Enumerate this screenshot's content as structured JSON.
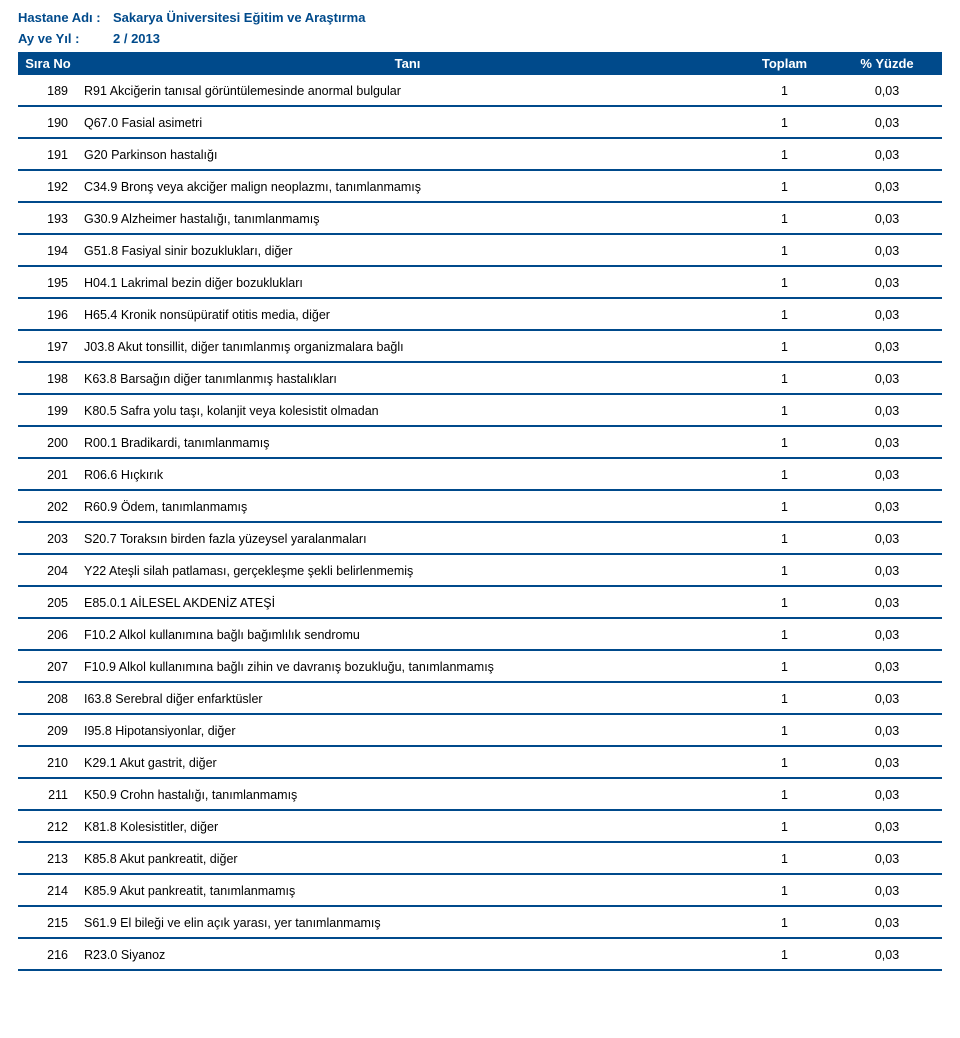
{
  "meta": {
    "hospital_label": "Hastane Adı :",
    "hospital_value": "Sakarya Üniversitesi Eğitim ve Araştırma",
    "period_label": "Ay ve Yıl :",
    "period_value": "2 / 2013"
  },
  "columns": {
    "no": "Sıra No",
    "desc": "Tanı",
    "total": "Toplam",
    "pct": "% Yüzde"
  },
  "styling": {
    "header_bg": "#004a8b",
    "header_fg": "#ffffff",
    "border_color": "#004a8b",
    "meta_color": "#004a8b",
    "body_bg": "#ffffff",
    "font_family": "Arial",
    "body_fontsize": 13,
    "col_widths": {
      "no": 60,
      "total": 95,
      "pct": 110
    }
  },
  "rows": [
    {
      "no": "189",
      "desc": "R91 Akciğerin tanısal görüntülemesinde anormal bulgular",
      "total": "1",
      "pct": "0,03"
    },
    {
      "no": "190",
      "desc": "Q67.0 Fasial asimetri",
      "total": "1",
      "pct": "0,03"
    },
    {
      "no": "191",
      "desc": "G20 Parkinson hastalığı",
      "total": "1",
      "pct": "0,03"
    },
    {
      "no": "192",
      "desc": "C34.9 Bronş veya akciğer malign neoplazmı, tanımlanmamış",
      "total": "1",
      "pct": "0,03"
    },
    {
      "no": "193",
      "desc": "G30.9 Alzheimer hastalığı, tanımlanmamış",
      "total": "1",
      "pct": "0,03"
    },
    {
      "no": "194",
      "desc": "G51.8 Fasiyal sinir bozuklukları, diğer",
      "total": "1",
      "pct": "0,03"
    },
    {
      "no": "195",
      "desc": "H04.1 Lakrimal bezin diğer bozuklukları",
      "total": "1",
      "pct": "0,03"
    },
    {
      "no": "196",
      "desc": "H65.4 Kronik nonsüpüratif otitis media, diğer",
      "total": "1",
      "pct": "0,03"
    },
    {
      "no": "197",
      "desc": "J03.8 Akut tonsillit, diğer tanımlanmış organizmalara bağlı",
      "total": "1",
      "pct": "0,03"
    },
    {
      "no": "198",
      "desc": "K63.8 Barsağın diğer tanımlanmış hastalıkları",
      "total": "1",
      "pct": "0,03"
    },
    {
      "no": "199",
      "desc": "K80.5 Safra yolu taşı, kolanjit veya kolesistit olmadan",
      "total": "1",
      "pct": "0,03"
    },
    {
      "no": "200",
      "desc": "R00.1 Bradikardi, tanımlanmamış",
      "total": "1",
      "pct": "0,03"
    },
    {
      "no": "201",
      "desc": "R06.6 Hıçkırık",
      "total": "1",
      "pct": "0,03"
    },
    {
      "no": "202",
      "desc": "R60.9 Ödem, tanımlanmamış",
      "total": "1",
      "pct": "0,03"
    },
    {
      "no": "203",
      "desc": "S20.7 Toraksın birden fazla yüzeysel yaralanmaları",
      "total": "1",
      "pct": "0,03"
    },
    {
      "no": "204",
      "desc": "Y22 Ateşli silah patlaması, gerçekleşme şekli belirlenmemiş",
      "total": "1",
      "pct": "0,03"
    },
    {
      "no": "205",
      "desc": "E85.0.1 AİLESEL AKDENİZ ATEŞİ",
      "total": "1",
      "pct": "0,03"
    },
    {
      "no": "206",
      "desc": "F10.2 Alkol kullanımına bağlı bağımlılık sendromu",
      "total": "1",
      "pct": "0,03"
    },
    {
      "no": "207",
      "desc": "F10.9 Alkol kullanımına bağlı zihin ve davranış bozukluğu, tanımlanmamış",
      "total": "1",
      "pct": "0,03"
    },
    {
      "no": "208",
      "desc": "I63.8 Serebral diğer enfarktüsler",
      "total": "1",
      "pct": "0,03"
    },
    {
      "no": "209",
      "desc": "I95.8 Hipotansiyonlar, diğer",
      "total": "1",
      "pct": "0,03"
    },
    {
      "no": "210",
      "desc": "K29.1 Akut gastrit, diğer",
      "total": "1",
      "pct": "0,03"
    },
    {
      "no": "211",
      "desc": "K50.9 Crohn hastalığı, tanımlanmamış",
      "total": "1",
      "pct": "0,03"
    },
    {
      "no": "212",
      "desc": "K81.8 Kolesistitler, diğer",
      "total": "1",
      "pct": "0,03"
    },
    {
      "no": "213",
      "desc": "K85.8 Akut pankreatit, diğer",
      "total": "1",
      "pct": "0,03"
    },
    {
      "no": "214",
      "desc": "K85.9 Akut pankreatit, tanımlanmamış",
      "total": "1",
      "pct": "0,03"
    },
    {
      "no": "215",
      "desc": "S61.9 El bileği ve elin açık yarası, yer tanımlanmamış",
      "total": "1",
      "pct": "0,03"
    },
    {
      "no": "216",
      "desc": "R23.0 Siyanoz",
      "total": "1",
      "pct": "0,03"
    }
  ]
}
